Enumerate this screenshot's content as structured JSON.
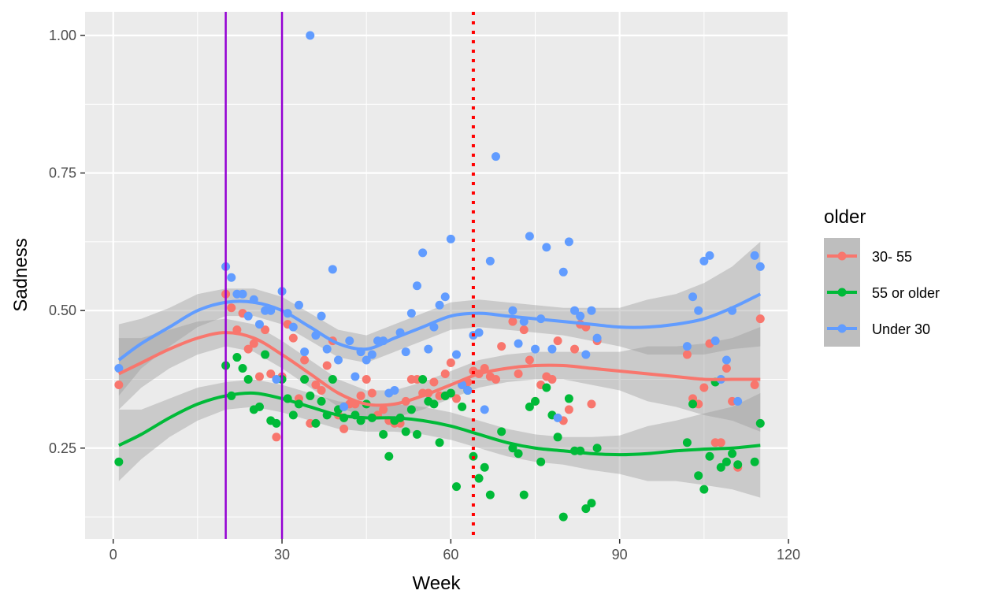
{
  "chart_data": {
    "type": "scatter",
    "xlabel": "Week",
    "ylabel": "Sadness",
    "xlim": [
      -5,
      120
    ],
    "ylim": [
      0.085,
      1.043
    ],
    "x_ticks": [
      0,
      30,
      60,
      90,
      120
    ],
    "y_ticks": [
      0.25,
      0.5,
      0.75,
      1.0
    ],
    "x_tick_labels": [
      "0",
      "30",
      "60",
      "90",
      "120"
    ],
    "y_tick_labels": [
      "0.25",
      "0.50",
      "0.75",
      "1.00"
    ],
    "grid": true,
    "legend": {
      "title": "older",
      "position": "right"
    },
    "vertical_lines": [
      {
        "x": 20,
        "color": "#9400D3",
        "style": "solid"
      },
      {
        "x": 30,
        "color": "#9400D3",
        "style": "solid"
      },
      {
        "x": 64,
        "color": "#FF0000",
        "style": "dotted"
      }
    ],
    "series": [
      {
        "name": "30- 55",
        "color": "#F8766D",
        "points": [
          [
            1,
            0.365
          ],
          [
            20,
            0.53
          ],
          [
            21,
            0.505
          ],
          [
            22,
            0.465
          ],
          [
            23,
            0.495
          ],
          [
            24,
            0.43
          ],
          [
            25,
            0.44
          ],
          [
            26,
            0.38
          ],
          [
            27,
            0.465
          ],
          [
            28,
            0.385
          ],
          [
            29,
            0.27
          ],
          [
            30,
            0.38
          ],
          [
            31,
            0.475
          ],
          [
            32,
            0.45
          ],
          [
            33,
            0.34
          ],
          [
            34,
            0.41
          ],
          [
            35,
            0.295
          ],
          [
            36,
            0.365
          ],
          [
            37,
            0.355
          ],
          [
            38,
            0.4
          ],
          [
            39,
            0.445
          ],
          [
            40,
            0.31
          ],
          [
            41,
            0.285
          ],
          [
            42,
            0.33
          ],
          [
            43,
            0.33
          ],
          [
            44,
            0.345
          ],
          [
            45,
            0.375
          ],
          [
            46,
            0.35
          ],
          [
            47,
            0.31
          ],
          [
            48,
            0.32
          ],
          [
            49,
            0.3
          ],
          [
            50,
            0.295
          ],
          [
            51,
            0.295
          ],
          [
            52,
            0.335
          ],
          [
            53,
            0.375
          ],
          [
            54,
            0.375
          ],
          [
            55,
            0.35
          ],
          [
            56,
            0.35
          ],
          [
            57,
            0.37
          ],
          [
            58,
            0.345
          ],
          [
            59,
            0.385
          ],
          [
            60,
            0.405
          ],
          [
            61,
            0.34
          ],
          [
            62,
            0.365
          ],
          [
            63,
            0.37
          ],
          [
            64,
            0.39
          ],
          [
            65,
            0.385
          ],
          [
            66,
            0.395
          ],
          [
            67,
            0.38
          ],
          [
            68,
            0.375
          ],
          [
            69,
            0.435
          ],
          [
            71,
            0.48
          ],
          [
            72,
            0.385
          ],
          [
            73,
            0.465
          ],
          [
            74,
            0.41
          ],
          [
            75,
            0.335
          ],
          [
            76,
            0.365
          ],
          [
            77,
            0.38
          ],
          [
            78,
            0.375
          ],
          [
            79,
            0.445
          ],
          [
            80,
            0.3
          ],
          [
            81,
            0.32
          ],
          [
            82,
            0.43
          ],
          [
            83,
            0.475
          ],
          [
            84,
            0.47
          ],
          [
            85,
            0.33
          ],
          [
            86,
            0.445
          ],
          [
            102,
            0.42
          ],
          [
            103,
            0.34
          ],
          [
            104,
            0.33
          ],
          [
            105,
            0.36
          ],
          [
            106,
            0.44
          ],
          [
            107,
            0.26
          ],
          [
            108,
            0.26
          ],
          [
            109,
            0.395
          ],
          [
            110,
            0.335
          ],
          [
            111,
            0.215
          ],
          [
            114,
            0.365
          ],
          [
            115,
            0.485
          ]
        ]
      },
      {
        "name": "55 or older",
        "color": "#00BA38",
        "points": [
          [
            1,
            0.225
          ],
          [
            20,
            0.4
          ],
          [
            21,
            0.345
          ],
          [
            22,
            0.415
          ],
          [
            23,
            0.395
          ],
          [
            24,
            0.375
          ],
          [
            25,
            0.32
          ],
          [
            26,
            0.325
          ],
          [
            27,
            0.42
          ],
          [
            28,
            0.3
          ],
          [
            29,
            0.295
          ],
          [
            30,
            0.375
          ],
          [
            31,
            0.34
          ],
          [
            32,
            0.31
          ],
          [
            33,
            0.33
          ],
          [
            34,
            0.375
          ],
          [
            35,
            0.345
          ],
          [
            36,
            0.295
          ],
          [
            37,
            0.335
          ],
          [
            38,
            0.31
          ],
          [
            39,
            0.375
          ],
          [
            40,
            0.32
          ],
          [
            41,
            0.305
          ],
          [
            43,
            0.31
          ],
          [
            44,
            0.3
          ],
          [
            45,
            0.33
          ],
          [
            46,
            0.305
          ],
          [
            48,
            0.275
          ],
          [
            49,
            0.235
          ],
          [
            50,
            0.3
          ],
          [
            51,
            0.305
          ],
          [
            52,
            0.28
          ],
          [
            53,
            0.32
          ],
          [
            54,
            0.275
          ],
          [
            55,
            0.375
          ],
          [
            56,
            0.335
          ],
          [
            57,
            0.33
          ],
          [
            58,
            0.26
          ],
          [
            59,
            0.345
          ],
          [
            60,
            0.35
          ],
          [
            61,
            0.18
          ],
          [
            62,
            0.325
          ],
          [
            63,
            0.355
          ],
          [
            64,
            0.235
          ],
          [
            65,
            0.195
          ],
          [
            66,
            0.215
          ],
          [
            67,
            0.165
          ],
          [
            69,
            0.28
          ],
          [
            71,
            0.25
          ],
          [
            72,
            0.24
          ],
          [
            73,
            0.165
          ],
          [
            74,
            0.325
          ],
          [
            75,
            0.335
          ],
          [
            76,
            0.225
          ],
          [
            77,
            0.36
          ],
          [
            78,
            0.31
          ],
          [
            79,
            0.27
          ],
          [
            80,
            0.125
          ],
          [
            81,
            0.34
          ],
          [
            82,
            0.245
          ],
          [
            83,
            0.245
          ],
          [
            84,
            0.14
          ],
          [
            85,
            0.15
          ],
          [
            86,
            0.25
          ],
          [
            102,
            0.26
          ],
          [
            103,
            0.33
          ],
          [
            104,
            0.2
          ],
          [
            105,
            0.175
          ],
          [
            106,
            0.235
          ],
          [
            107,
            0.37
          ],
          [
            108,
            0.215
          ],
          [
            109,
            0.225
          ],
          [
            110,
            0.24
          ],
          [
            111,
            0.22
          ],
          [
            114,
            0.225
          ],
          [
            115,
            0.295
          ]
        ]
      },
      {
        "name": "Under 30",
        "color": "#619CFF",
        "points": [
          [
            1,
            0.395
          ],
          [
            20,
            0.58
          ],
          [
            21,
            0.56
          ],
          [
            22,
            0.53
          ],
          [
            23,
            0.53
          ],
          [
            24,
            0.49
          ],
          [
            25,
            0.52
          ],
          [
            26,
            0.475
          ],
          [
            27,
            0.5
          ],
          [
            28,
            0.5
          ],
          [
            29,
            0.375
          ],
          [
            30,
            0.535
          ],
          [
            31,
            0.495
          ],
          [
            32,
            0.47
          ],
          [
            33,
            0.51
          ],
          [
            34,
            0.425
          ],
          [
            35,
            1.0
          ],
          [
            36,
            0.455
          ],
          [
            37,
            0.49
          ],
          [
            38,
            0.43
          ],
          [
            39,
            0.575
          ],
          [
            40,
            0.41
          ],
          [
            41,
            0.325
          ],
          [
            42,
            0.445
          ],
          [
            43,
            0.38
          ],
          [
            44,
            0.425
          ],
          [
            45,
            0.41
          ],
          [
            46,
            0.42
          ],
          [
            47,
            0.445
          ],
          [
            48,
            0.445
          ],
          [
            49,
            0.35
          ],
          [
            50,
            0.355
          ],
          [
            51,
            0.46
          ],
          [
            52,
            0.425
          ],
          [
            53,
            0.495
          ],
          [
            54,
            0.545
          ],
          [
            55,
            0.605
          ],
          [
            56,
            0.43
          ],
          [
            57,
            0.47
          ],
          [
            58,
            0.51
          ],
          [
            59,
            0.525
          ],
          [
            60,
            0.63
          ],
          [
            61,
            0.42
          ],
          [
            62,
            0.365
          ],
          [
            63,
            0.355
          ],
          [
            64,
            0.455
          ],
          [
            65,
            0.46
          ],
          [
            66,
            0.32
          ],
          [
            67,
            0.59
          ],
          [
            68,
            0.78
          ],
          [
            71,
            0.5
          ],
          [
            72,
            0.44
          ],
          [
            73,
            0.48
          ],
          [
            74,
            0.635
          ],
          [
            75,
            0.43
          ],
          [
            76,
            0.485
          ],
          [
            77,
            0.615
          ],
          [
            78,
            0.43
          ],
          [
            79,
            0.305
          ],
          [
            80,
            0.57
          ],
          [
            81,
            0.625
          ],
          [
            82,
            0.5
          ],
          [
            83,
            0.49
          ],
          [
            84,
            0.42
          ],
          [
            85,
            0.5
          ],
          [
            86,
            0.45
          ],
          [
            102,
            0.435
          ],
          [
            103,
            0.525
          ],
          [
            104,
            0.5
          ],
          [
            105,
            0.59
          ],
          [
            106,
            0.6
          ],
          [
            107,
            0.445
          ],
          [
            108,
            0.375
          ],
          [
            109,
            0.41
          ],
          [
            110,
            0.5
          ],
          [
            111,
            0.335
          ],
          [
            114,
            0.6
          ],
          [
            115,
            0.58
          ]
        ]
      }
    ],
    "smooth": [
      {
        "name": "Under 30",
        "x": [
          1,
          5,
          10,
          15,
          20,
          25,
          30,
          35,
          40,
          45,
          50,
          55,
          60,
          65,
          70,
          75,
          80,
          85,
          90,
          95,
          100,
          105,
          110,
          115
        ],
        "y": [
          0.41,
          0.44,
          0.47,
          0.5,
          0.515,
          0.515,
          0.5,
          0.47,
          0.44,
          0.43,
          0.45,
          0.47,
          0.49,
          0.495,
          0.49,
          0.485,
          0.48,
          0.475,
          0.47,
          0.47,
          0.475,
          0.485,
          0.505,
          0.53
        ],
        "band": [
          0.065,
          0.045,
          0.035,
          0.03,
          0.025,
          0.025,
          0.025,
          0.025,
          0.025,
          0.025,
          0.025,
          0.025,
          0.025,
          0.025,
          0.025,
          0.025,
          0.025,
          0.03,
          0.035,
          0.05,
          0.055,
          0.065,
          0.075,
          0.095
        ]
      },
      {
        "name": "30- 55",
        "x": [
          1,
          5,
          10,
          15,
          20,
          25,
          30,
          35,
          40,
          45,
          50,
          55,
          60,
          65,
          70,
          75,
          80,
          85,
          90,
          95,
          100,
          105,
          110,
          115
        ],
        "y": [
          0.385,
          0.405,
          0.43,
          0.45,
          0.46,
          0.45,
          0.42,
          0.385,
          0.35,
          0.33,
          0.33,
          0.345,
          0.365,
          0.385,
          0.395,
          0.4,
          0.4,
          0.395,
          0.39,
          0.385,
          0.38,
          0.375,
          0.375,
          0.375
        ],
        "band": [
          0.065,
          0.045,
          0.035,
          0.03,
          0.025,
          0.025,
          0.025,
          0.025,
          0.025,
          0.025,
          0.025,
          0.025,
          0.025,
          0.025,
          0.025,
          0.025,
          0.025,
          0.03,
          0.035,
          0.05,
          0.055,
          0.065,
          0.075,
          0.095
        ]
      },
      {
        "name": "55 or older",
        "x": [
          1,
          5,
          10,
          15,
          20,
          25,
          30,
          35,
          40,
          45,
          50,
          55,
          60,
          65,
          70,
          75,
          80,
          85,
          90,
          95,
          100,
          105,
          110,
          115
        ],
        "y": [
          0.255,
          0.275,
          0.305,
          0.33,
          0.345,
          0.35,
          0.34,
          0.325,
          0.31,
          0.305,
          0.305,
          0.3,
          0.29,
          0.275,
          0.26,
          0.25,
          0.245,
          0.24,
          0.238,
          0.24,
          0.245,
          0.248,
          0.25,
          0.255
        ],
        "band": [
          0.065,
          0.045,
          0.035,
          0.03,
          0.025,
          0.025,
          0.025,
          0.025,
          0.025,
          0.025,
          0.025,
          0.025,
          0.025,
          0.025,
          0.025,
          0.025,
          0.025,
          0.03,
          0.035,
          0.05,
          0.055,
          0.065,
          0.075,
          0.095
        ]
      }
    ]
  }
}
